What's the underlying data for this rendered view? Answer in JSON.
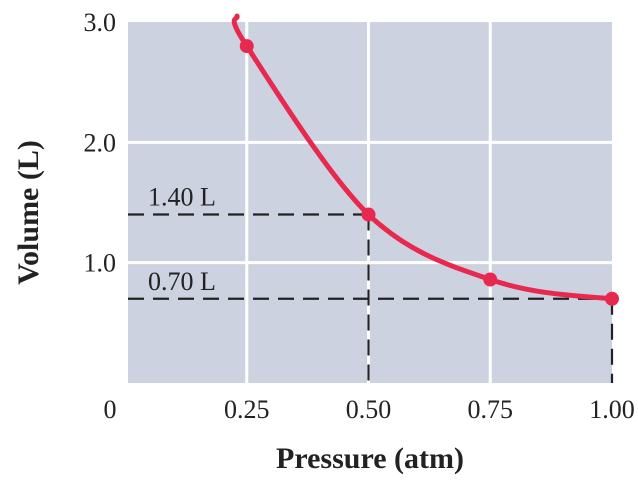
{
  "chart_data": {
    "type": "line",
    "title": "",
    "xlabel": "Pressure (atm)",
    "ylabel": "Volume (L)",
    "xlim": [
      0,
      1.0
    ],
    "ylim": [
      0,
      3.0
    ],
    "x_ticks": [
      "0",
      "0.25",
      "0.50",
      "0.75",
      "1.00"
    ],
    "y_ticks": [
      "1.0",
      "2.0",
      "3.0"
    ],
    "grid": true,
    "series": [
      {
        "x": [
          0.25,
          0.5,
          0.75,
          1.0
        ],
        "y": [
          2.8,
          1.4,
          0.86,
          0.7
        ],
        "color": "#e8294f"
      }
    ],
    "annotations": [
      {
        "text": "1.40 L",
        "x": 0.5,
        "y": 1.4
      },
      {
        "text": "0.70 L",
        "x": 1.0,
        "y": 0.7
      }
    ],
    "colors": {
      "plot_bg": "#cdd2e1",
      "grid": "#ffffff",
      "curve": "#e8294f",
      "dash": "#222222"
    }
  }
}
